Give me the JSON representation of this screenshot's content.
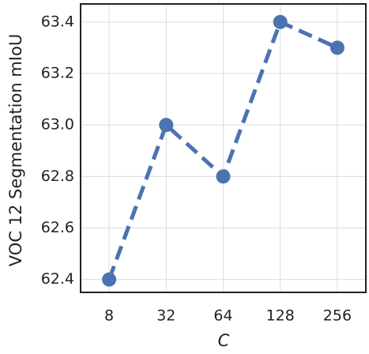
{
  "chart_data": {
    "type": "line",
    "x_label": "C",
    "y_label": "VOC 12 Segmentation mIoU",
    "categories": [
      "8",
      "32",
      "64",
      "128",
      "256"
    ],
    "series": [
      {
        "name": "mIoU",
        "color": "#4c72b0",
        "values": [
          62.4,
          63.0,
          62.8,
          63.4,
          63.3
        ]
      }
    ],
    "ylim": [
      62.35,
      63.47
    ],
    "yticks": [
      62.4,
      62.6,
      62.8,
      {
        "value": 63.0,
        "label": "63.0"
      },
      63.2,
      63.4
    ],
    "grid": true,
    "line_style": "dashed",
    "marker": "circle"
  }
}
